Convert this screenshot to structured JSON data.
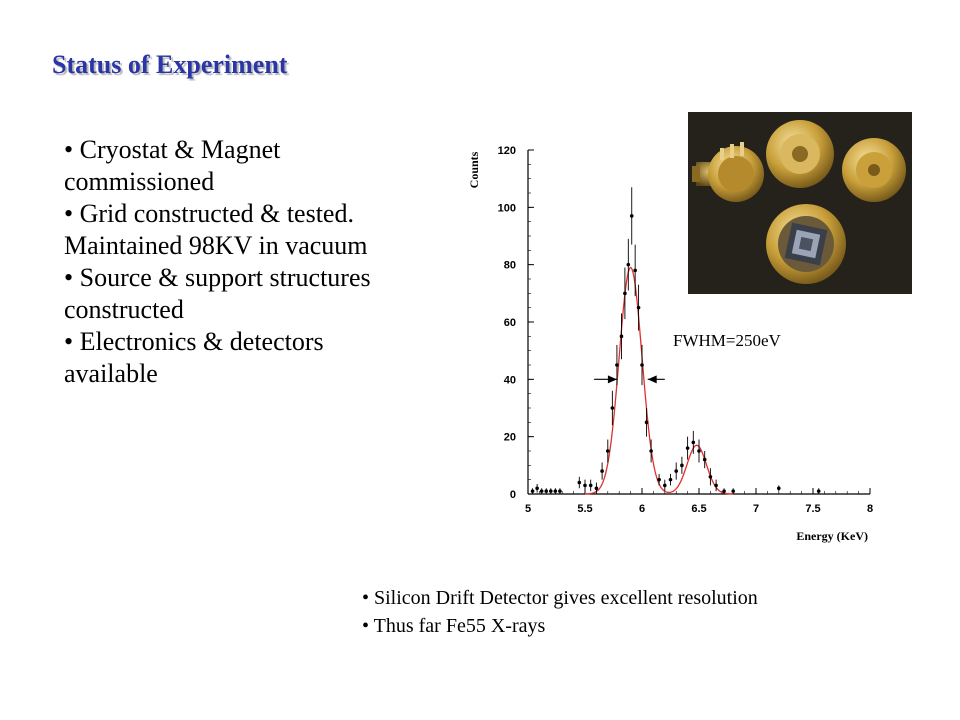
{
  "slide": {
    "title": "Status of Experiment",
    "bullets": [
      "• Cryostat & Magnet commissioned",
      "• Grid constructed & tested. Maintained 98KV in vacuum",
      "• Source & support structures constructed",
      "• Electronics & detectors available"
    ],
    "notes": [
      "• Silicon Drift Detector gives excellent resolution",
      "• Thus far Fe55 X-rays"
    ]
  },
  "chart_data": {
    "type": "scatter",
    "title": "",
    "xlabel": "Energy (KeV)",
    "ylabel": "Counts",
    "xlim": [
      5,
      8
    ],
    "ylim": [
      0,
      120
    ],
    "xticks": [
      "5",
      "5.5",
      "6",
      "6.5",
      "7",
      "7.5",
      "8"
    ],
    "yticks": [
      "0",
      "20",
      "40",
      "60",
      "80",
      "100",
      "120"
    ],
    "annotation": "FWHM=250eV",
    "points": [
      {
        "x": 5.04,
        "y": 1,
        "err": 1
      },
      {
        "x": 5.08,
        "y": 2,
        "err": 1.5
      },
      {
        "x": 5.12,
        "y": 1,
        "err": 1
      },
      {
        "x": 5.16,
        "y": 1,
        "err": 1
      },
      {
        "x": 5.2,
        "y": 1,
        "err": 1
      },
      {
        "x": 5.24,
        "y": 1,
        "err": 1
      },
      {
        "x": 5.28,
        "y": 1,
        "err": 1
      },
      {
        "x": 5.45,
        "y": 4,
        "err": 2
      },
      {
        "x": 5.5,
        "y": 3,
        "err": 2
      },
      {
        "x": 5.55,
        "y": 3,
        "err": 2
      },
      {
        "x": 5.6,
        "y": 2,
        "err": 2
      },
      {
        "x": 5.65,
        "y": 8,
        "err": 3
      },
      {
        "x": 5.7,
        "y": 15,
        "err": 4
      },
      {
        "x": 5.74,
        "y": 30,
        "err": 6
      },
      {
        "x": 5.78,
        "y": 45,
        "err": 7
      },
      {
        "x": 5.82,
        "y": 55,
        "err": 8
      },
      {
        "x": 5.85,
        "y": 70,
        "err": 9
      },
      {
        "x": 5.88,
        "y": 80,
        "err": 9
      },
      {
        "x": 5.91,
        "y": 97,
        "err": 10
      },
      {
        "x": 5.94,
        "y": 78,
        "err": 9
      },
      {
        "x": 5.97,
        "y": 65,
        "err": 8
      },
      {
        "x": 6.0,
        "y": 45,
        "err": 7
      },
      {
        "x": 6.04,
        "y": 25,
        "err": 5
      },
      {
        "x": 6.08,
        "y": 15,
        "err": 4
      },
      {
        "x": 6.15,
        "y": 5,
        "err": 2
      },
      {
        "x": 6.2,
        "y": 3,
        "err": 2
      },
      {
        "x": 6.25,
        "y": 5,
        "err": 2
      },
      {
        "x": 6.3,
        "y": 8,
        "err": 3
      },
      {
        "x": 6.35,
        "y": 10,
        "err": 3
      },
      {
        "x": 6.4,
        "y": 16,
        "err": 4
      },
      {
        "x": 6.45,
        "y": 18,
        "err": 4
      },
      {
        "x": 6.5,
        "y": 15,
        "err": 4
      },
      {
        "x": 6.55,
        "y": 12,
        "err": 3
      },
      {
        "x": 6.6,
        "y": 6,
        "err": 3
      },
      {
        "x": 6.65,
        "y": 3,
        "err": 2
      },
      {
        "x": 6.72,
        "y": 1,
        "err": 1
      },
      {
        "x": 6.8,
        "y": 1,
        "err": 1
      },
      {
        "x": 7.2,
        "y": 2,
        "err": 1
      },
      {
        "x": 7.55,
        "y": 1,
        "err": 1
      }
    ],
    "fit": {
      "color": "#e03030",
      "peaks": [
        {
          "center": 5.9,
          "amplitude": 79,
          "sigma": 0.1
        },
        {
          "center": 6.48,
          "amplitude": 17,
          "sigma": 0.085
        }
      ]
    },
    "fwhm_arrows_y": 40,
    "fwhm_arrows": [
      {
        "from": 5.58,
        "to": 5.78
      },
      {
        "from": 6.2,
        "to": 6.05
      }
    ]
  },
  "photo": {
    "icon": "silicon-drift-detector-photo",
    "background": "#1e1c17",
    "accent": "#c9a03a"
  }
}
